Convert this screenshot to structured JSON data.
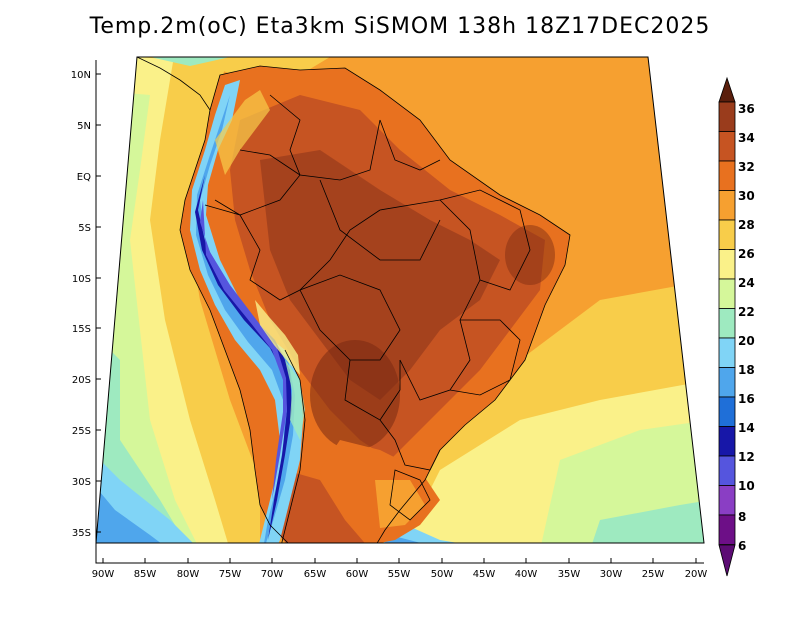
{
  "title": "Temp.2m(oC) Eta3km SiSMOM 138h 18Z17DEC2025",
  "lat_labels": [
    "10N",
    "5N",
    "EQ",
    "5S",
    "10S",
    "15S",
    "20S",
    "25S",
    "30S",
    "35S"
  ],
  "lon_labels": [
    "90W",
    "85W",
    "80W",
    "75W",
    "70W",
    "65W",
    "60W",
    "55W",
    "50W",
    "45W",
    "40W",
    "35W",
    "30W",
    "25W",
    "20W"
  ],
  "colorbar": {
    "labels": [
      "36",
      "34",
      "32",
      "30",
      "28",
      "26",
      "24",
      "22",
      "20",
      "18",
      "16",
      "14",
      "12",
      "10",
      "8",
      "6"
    ],
    "colors": [
      "#7a2a12",
      "#9a3c1c",
      "#c65422",
      "#e8711f",
      "#f6a030",
      "#f8cd4a",
      "#faf189",
      "#d5f79a",
      "#9eeac0",
      "#80d4f6",
      "#4fa6ec",
      "#1f6fd8",
      "#1717a8",
      "#5555de",
      "#8a3ec4",
      "#6d0f87"
    ],
    "top_arrow_color": "#5a1e0c",
    "bottom_arrow_color": "#5c0c74"
  }
}
